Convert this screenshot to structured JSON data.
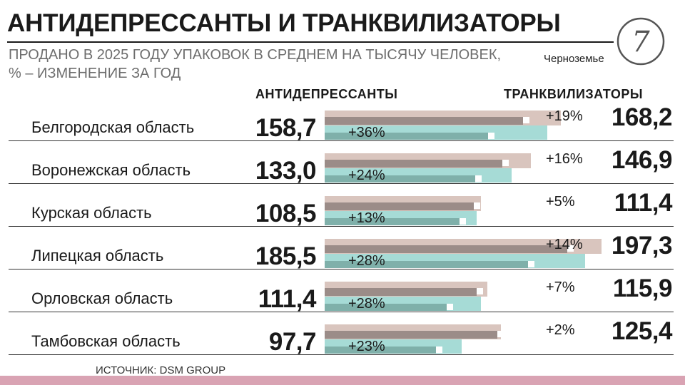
{
  "header": {
    "title": "АНТИДЕПРЕССАНТЫ И ТРАНКВИЛИЗАТОРЫ",
    "subtitle_line1": "ПРОДАНО В 2025 ГОДУ УПАКОВОК В СРЕДНЕМ НА ТЫСЯЧУ ЧЕЛОВЕК,",
    "subtitle_line2": "% – ИЗМЕНЕНИЕ ЗА ГОД",
    "brand": "Черноземье",
    "logo_glyph": "7"
  },
  "columns": {
    "antidepressants": "АНТИДЕПРЕССАНТЫ",
    "tranquilizers": "ТРАНКВИЛИЗАТОРЫ"
  },
  "source": "ИСТОЧНИК: DSM GROUP",
  "colors": {
    "tranquilizers_bar": "#d9c5be",
    "tranquilizers_prev": "#9b8c88",
    "antidepressants_bar": "#a6dbd6",
    "antidepressants_prev": "#7fb0aa",
    "footer": "#d9a3b3"
  },
  "chart_data": {
    "type": "bar",
    "orientation": "horizontal",
    "categories": [
      "Белгородская область",
      "Воронежская область",
      "Курская область",
      "Липецкая область",
      "Орловская область",
      "Тамбовская область"
    ],
    "series": [
      {
        "name": "АНТИДЕПРЕССАНТЫ",
        "values": [
          158.7,
          133.0,
          108.5,
          185.5,
          111.4,
          97.7
        ],
        "labels": [
          "158,7",
          "133,0",
          "108,5",
          "185,5",
          "111,4",
          "97,7"
        ],
        "change_pct": [
          36,
          24,
          13,
          28,
          28,
          23
        ],
        "change_labels": [
          "+36%",
          "+24%",
          "+13%",
          "+28%",
          "+28%",
          "+23%"
        ]
      },
      {
        "name": "ТРАНКВИЛИЗАТОРЫ",
        "values": [
          168.2,
          146.9,
          111.4,
          197.3,
          115.9,
          125.4
        ],
        "labels": [
          "168,2",
          "146,9",
          "111,4",
          "197,3",
          "115,9",
          "125,4"
        ],
        "change_pct": [
          19,
          16,
          5,
          14,
          7,
          2
        ],
        "change_labels": [
          "+19%",
          "+16%",
          "+5%",
          "+14%",
          "+7%",
          "+2%"
        ]
      }
    ],
    "xlim": [
      0,
      197.3
    ],
    "grid": false,
    "legend": "none"
  }
}
